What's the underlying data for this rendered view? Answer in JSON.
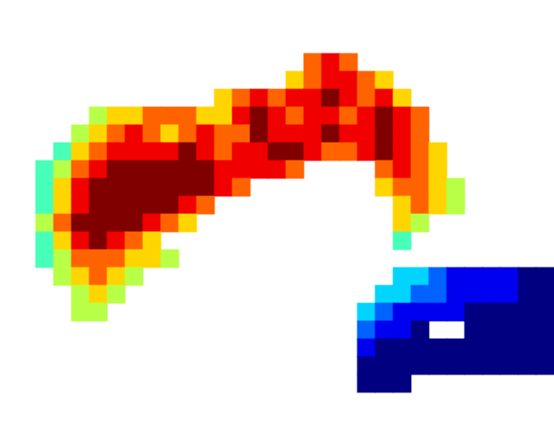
{
  "chart_data": {
    "type": "heatmap",
    "grid": false,
    "tick_labels": false,
    "zlim": [
      0,
      9
    ],
    "cells": [
      [
        null,
        null,
        null,
        null,
        null,
        null,
        null,
        null,
        null,
        null,
        null,
        null,
        null,
        null,
        null,
        null,
        null,
        null,
        null,
        null,
        null,
        null,
        null,
        null,
        null,
        null,
        null,
        null,
        null,
        null,
        null
      ],
      [
        null,
        null,
        null,
        null,
        null,
        null,
        null,
        null,
        null,
        null,
        null,
        null,
        null,
        null,
        null,
        null,
        null,
        null,
        null,
        null,
        null,
        null,
        null,
        null,
        null,
        null,
        null,
        null,
        null,
        null,
        null
      ],
      [
        null,
        null,
        null,
        null,
        null,
        null,
        null,
        null,
        null,
        null,
        null,
        null,
        null,
        null,
        null,
        null,
        null,
        null,
        null,
        null,
        null,
        null,
        null,
        null,
        null,
        null,
        null,
        null,
        null,
        null,
        null
      ],
      [
        null,
        null,
        null,
        null,
        null,
        null,
        null,
        null,
        null,
        null,
        null,
        null,
        null,
        null,
        null,
        null,
        null,
        7,
        8,
        7,
        null,
        null,
        null,
        null,
        null,
        null,
        null,
        null,
        null,
        null,
        null
      ],
      [
        null,
        null,
        null,
        null,
        null,
        null,
        null,
        null,
        null,
        null,
        null,
        null,
        null,
        null,
        null,
        null,
        6,
        7,
        8,
        8,
        7,
        6,
        null,
        null,
        null,
        null,
        null,
        null,
        null,
        null,
        null
      ],
      [
        null,
        null,
        null,
        null,
        null,
        null,
        null,
        null,
        null,
        null,
        null,
        null,
        6,
        7,
        8,
        7,
        8,
        8,
        9,
        8,
        7,
        8,
        6,
        null,
        null,
        null,
        null,
        null,
        null,
        null,
        null
      ],
      [
        null,
        null,
        null,
        null,
        null,
        5,
        6,
        6,
        7,
        7,
        7,
        6,
        6,
        8,
        9,
        8,
        7,
        8,
        8,
        7,
        8,
        9,
        8,
        7,
        null,
        null,
        null,
        null,
        null,
        null,
        null
      ],
      [
        null,
        null,
        null,
        null,
        5,
        6,
        7,
        8,
        7,
        6,
        7,
        8,
        7,
        7,
        9,
        8,
        8,
        8,
        9,
        8,
        8,
        9,
        8,
        7,
        null,
        null,
        null,
        null,
        null,
        null,
        null
      ],
      [
        null,
        null,
        null,
        4,
        6,
        7,
        8,
        8,
        8,
        8,
        9,
        8,
        7,
        8,
        8,
        9,
        9,
        8,
        7,
        7,
        8,
        9,
        8,
        7,
        6,
        null,
        null,
        null,
        null,
        null,
        null
      ],
      [
        null,
        null,
        4,
        5,
        7,
        8,
        9,
        9,
        9,
        9,
        9,
        9,
        8,
        8,
        8,
        8,
        7,
        null,
        null,
        null,
        null,
        7,
        8,
        7,
        6,
        null,
        null,
        null,
        null,
        null,
        null
      ],
      [
        null,
        null,
        4,
        6,
        8,
        9,
        9,
        9,
        9,
        9,
        9,
        9,
        8,
        7,
        null,
        null,
        null,
        null,
        null,
        null,
        null,
        6,
        7,
        7,
        6,
        5,
        null,
        null,
        null,
        null,
        null
      ],
      [
        null,
        null,
        4,
        6,
        8,
        9,
        9,
        9,
        9,
        9,
        8,
        7,
        null,
        null,
        null,
        null,
        null,
        null,
        null,
        null,
        null,
        null,
        6,
        7,
        6,
        5,
        null,
        null,
        null,
        null,
        null
      ],
      [
        null,
        null,
        5,
        7,
        9,
        9,
        9,
        9,
        8,
        7,
        6,
        null,
        null,
        null,
        null,
        null,
        null,
        null,
        null,
        null,
        null,
        null,
        6,
        5,
        null,
        null,
        null,
        null,
        null,
        null,
        null
      ],
      [
        null,
        null,
        4,
        6,
        8,
        9,
        8,
        7,
        6,
        null,
        null,
        null,
        null,
        null,
        null,
        null,
        null,
        null,
        null,
        null,
        null,
        null,
        4,
        null,
        null,
        null,
        null,
        null,
        null,
        null,
        null
      ],
      [
        null,
        null,
        4,
        5,
        7,
        7,
        7,
        6,
        6,
        5,
        null,
        null,
        null,
        null,
        null,
        null,
        null,
        null,
        null,
        null,
        null,
        null,
        null,
        null,
        null,
        null,
        null,
        null,
        null,
        null,
        null
      ],
      [
        null,
        null,
        null,
        5,
        6,
        7,
        6,
        5,
        null,
        null,
        null,
        null,
        null,
        null,
        null,
        null,
        null,
        null,
        null,
        null,
        null,
        null,
        3,
        3,
        2,
        1,
        1,
        1,
        1,
        0,
        0
      ],
      [
        null,
        null,
        null,
        null,
        5,
        6,
        5,
        null,
        null,
        null,
        null,
        null,
        null,
        null,
        null,
        null,
        null,
        null,
        null,
        null,
        null,
        3,
        3,
        2,
        2,
        1,
        1,
        1,
        1,
        0,
        0
      ],
      [
        null,
        null,
        null,
        null,
        5,
        5,
        null,
        null,
        null,
        null,
        null,
        null,
        null,
        null,
        null,
        null,
        null,
        null,
        null,
        null,
        3,
        2,
        1,
        1,
        1,
        1,
        0,
        0,
        0,
        0,
        0
      ],
      [
        null,
        null,
        null,
        null,
        null,
        null,
        null,
        null,
        null,
        null,
        null,
        null,
        null,
        null,
        null,
        null,
        null,
        null,
        null,
        null,
        2,
        1,
        1,
        0,
        null,
        null,
        0,
        0,
        0,
        0,
        0
      ],
      [
        null,
        null,
        null,
        null,
        null,
        null,
        null,
        null,
        null,
        null,
        null,
        null,
        null,
        null,
        null,
        null,
        null,
        null,
        null,
        null,
        1,
        0,
        0,
        0,
        0,
        0,
        0,
        0,
        0,
        0,
        0
      ],
      [
        null,
        null,
        null,
        null,
        null,
        null,
        null,
        null,
        null,
        null,
        null,
        null,
        null,
        null,
        null,
        null,
        null,
        null,
        null,
        null,
        0,
        0,
        0,
        0,
        0,
        0,
        0,
        0,
        0,
        0,
        0
      ],
      [
        null,
        null,
        null,
        null,
        null,
        null,
        null,
        null,
        null,
        null,
        null,
        null,
        null,
        null,
        null,
        null,
        null,
        null,
        null,
        null,
        0,
        0,
        0,
        null,
        null,
        null,
        null,
        null,
        null,
        null,
        null
      ],
      [
        null,
        null,
        null,
        null,
        null,
        null,
        null,
        null,
        null,
        null,
        null,
        null,
        null,
        null,
        null,
        null,
        null,
        null,
        null,
        null,
        null,
        null,
        null,
        null,
        null,
        null,
        null,
        null,
        null,
        null,
        null
      ],
      [
        null,
        null,
        null,
        null,
        null,
        null,
        null,
        null,
        null,
        null,
        null,
        null,
        null,
        null,
        null,
        null,
        null,
        null,
        null,
        null,
        null,
        null,
        null,
        null,
        null,
        null,
        null,
        null,
        null,
        null,
        null
      ]
    ]
  }
}
